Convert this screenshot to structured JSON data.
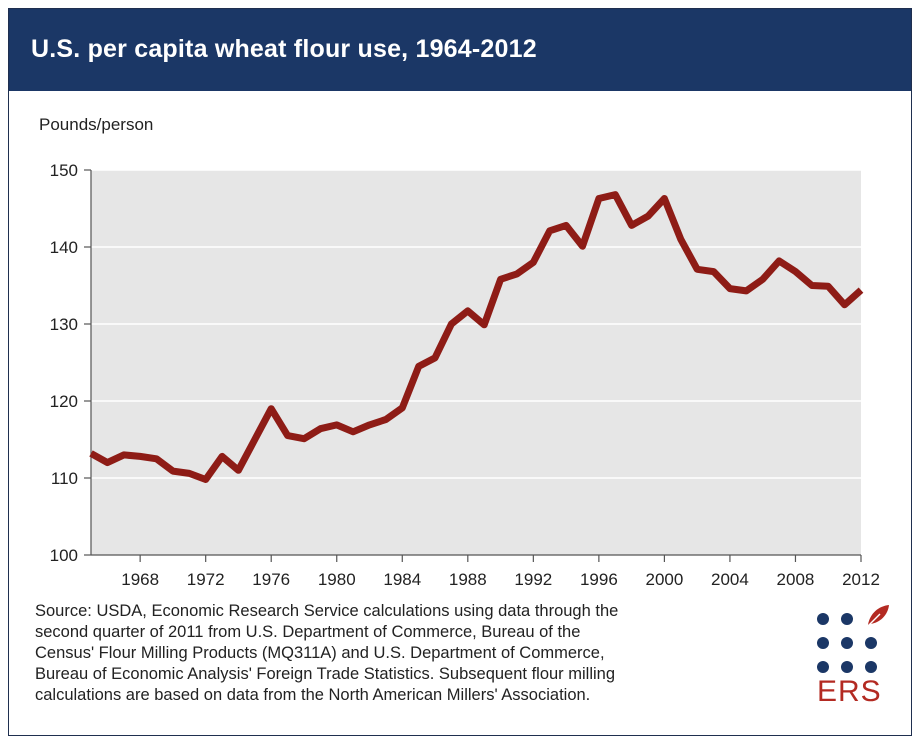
{
  "title": "U.S. per capita wheat flour use, 1964-2012",
  "colors": {
    "header": "#1b3766",
    "line": "#8e1c16",
    "plot_bg": "#e6e6e6",
    "logo_text": "#b32a22"
  },
  "chart_data": {
    "type": "line",
    "title": "U.S. per capita wheat flour use, 1964-2012",
    "ylabel": "Pounds/person",
    "xlabel": "",
    "xlim": [
      1965,
      2012
    ],
    "ylim": [
      100,
      150
    ],
    "x_ticks": [
      1968,
      1972,
      1976,
      1980,
      1984,
      1988,
      1992,
      1996,
      2000,
      2004,
      2008,
      2012
    ],
    "y_ticks": [
      100,
      110,
      120,
      130,
      140,
      150
    ],
    "grid": "horizontal",
    "series": [
      {
        "name": "Per capita wheat flour use",
        "x": [
          1965,
          1966,
          1967,
          1968,
          1969,
          1970,
          1971,
          1972,
          1973,
          1974,
          1975,
          1976,
          1977,
          1978,
          1979,
          1980,
          1981,
          1982,
          1983,
          1984,
          1985,
          1986,
          1987,
          1988,
          1989,
          1990,
          1991,
          1992,
          1993,
          1994,
          1995,
          1996,
          1997,
          1998,
          1999,
          2000,
          2001,
          2002,
          2003,
          2004,
          2005,
          2006,
          2007,
          2008,
          2009,
          2010,
          2011,
          2012
        ],
        "values": [
          113.2,
          112.0,
          113.0,
          112.8,
          112.5,
          110.9,
          110.6,
          109.8,
          112.8,
          111.0,
          115.0,
          119.0,
          115.5,
          115.1,
          116.4,
          116.9,
          116.0,
          116.9,
          117.6,
          119.1,
          124.5,
          125.6,
          130.0,
          131.7,
          129.9,
          135.8,
          136.5,
          138.0,
          142.1,
          142.8,
          140.1,
          146.3,
          146.8,
          142.8,
          144.0,
          146.3,
          141.0,
          137.1,
          136.8,
          134.6,
          134.3,
          135.8,
          138.2,
          136.8,
          135.0,
          134.9,
          132.5,
          134.4
        ]
      }
    ]
  },
  "source_lines": [
    "Source: USDA, Economic Research Service calculations using data through the",
    "second quarter of 2011 from U.S. Department of Commerce, Bureau of the",
    "Census' Flour Milling Products (MQ311A) and U.S. Department of Commerce,",
    "Bureau of Economic Analysis' Foreign Trade Statistics. Subsequent flour milling",
    "calculations are based on data from the North American Millers' Association."
  ],
  "logo": {
    "text": "ERS",
    "icon": "leaf-icon"
  }
}
